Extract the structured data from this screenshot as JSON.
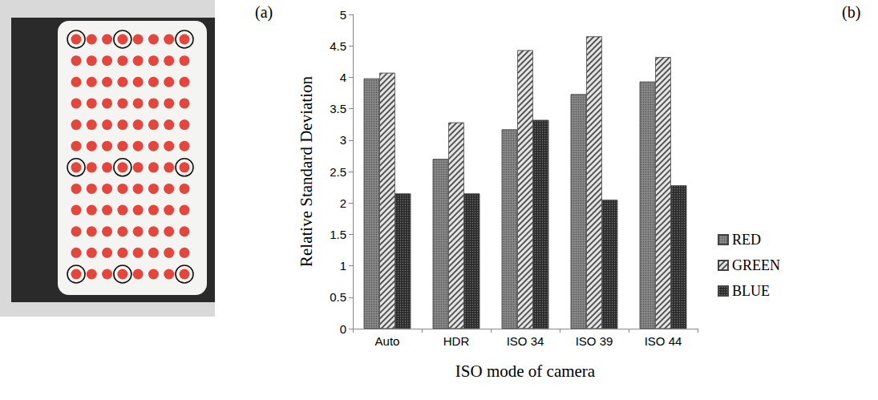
{
  "panel_labels": [
    "(a)",
    "(b)"
  ],
  "plate": {
    "rows": 12,
    "columns": 8,
    "circled_rows": [
      1,
      7,
      12
    ],
    "circled_columns": [
      1,
      4,
      8
    ],
    "color": "#e2463c"
  },
  "chart_data": {
    "type": "bar",
    "x_label": "ISO mode of camera",
    "y_label": "Relative Standard Deviation",
    "categories": [
      "Auto",
      "HDR",
      "ISO 34",
      "ISO 39",
      "ISO 44"
    ],
    "series": [
      {
        "name": "RED",
        "color": "#8c8c8c",
        "values": [
          3.98,
          2.7,
          3.17,
          3.73,
          3.93
        ]
      },
      {
        "name": "GREEN",
        "color": "#e6e6e6",
        "values": [
          4.07,
          3.28,
          4.43,
          4.65,
          4.32
        ]
      },
      {
        "name": "BLUE",
        "color": "#262626",
        "values": [
          2.15,
          2.15,
          3.32,
          2.05,
          2.28
        ]
      }
    ],
    "ylim": [
      0,
      5
    ],
    "yticks": [
      0,
      0.5,
      1,
      1.5,
      2,
      2.5,
      3,
      3.5,
      4,
      4.5,
      5
    ],
    "grid": false,
    "legend": "right"
  }
}
